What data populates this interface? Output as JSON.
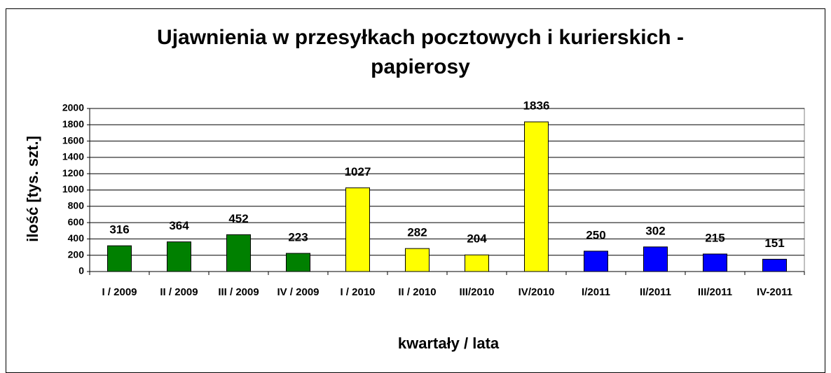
{
  "chart_data": {
    "type": "bar",
    "title": "Ujawnienia w przesyłkach pocztowych i kurierskich - papierosy",
    "x_label": "kwartały / lata",
    "y_label": "ilość [tys. szt.]",
    "categories": [
      "I / 2009",
      "II / 2009",
      "III / 2009",
      "IV / 2009",
      "I / 2010",
      "II / 2010",
      "III/2010",
      "IV/2010",
      "I/2011",
      "II/2011",
      "III/2011",
      "IV-2011"
    ],
    "values": [
      316,
      364,
      452,
      223,
      1027,
      282,
      204,
      1836,
      250,
      302,
      215,
      151
    ],
    "colors": [
      "#008000",
      "#008000",
      "#008000",
      "#008000",
      "#ffff00",
      "#ffff00",
      "#ffff00",
      "#ffff00",
      "#0000ff",
      "#0000ff",
      "#0000ff",
      "#0000ff"
    ],
    "ylim": [
      0,
      2000
    ],
    "yticks": [
      0,
      200,
      400,
      600,
      800,
      1000,
      1200,
      1400,
      1600,
      1800,
      2000
    ],
    "grid": true
  }
}
